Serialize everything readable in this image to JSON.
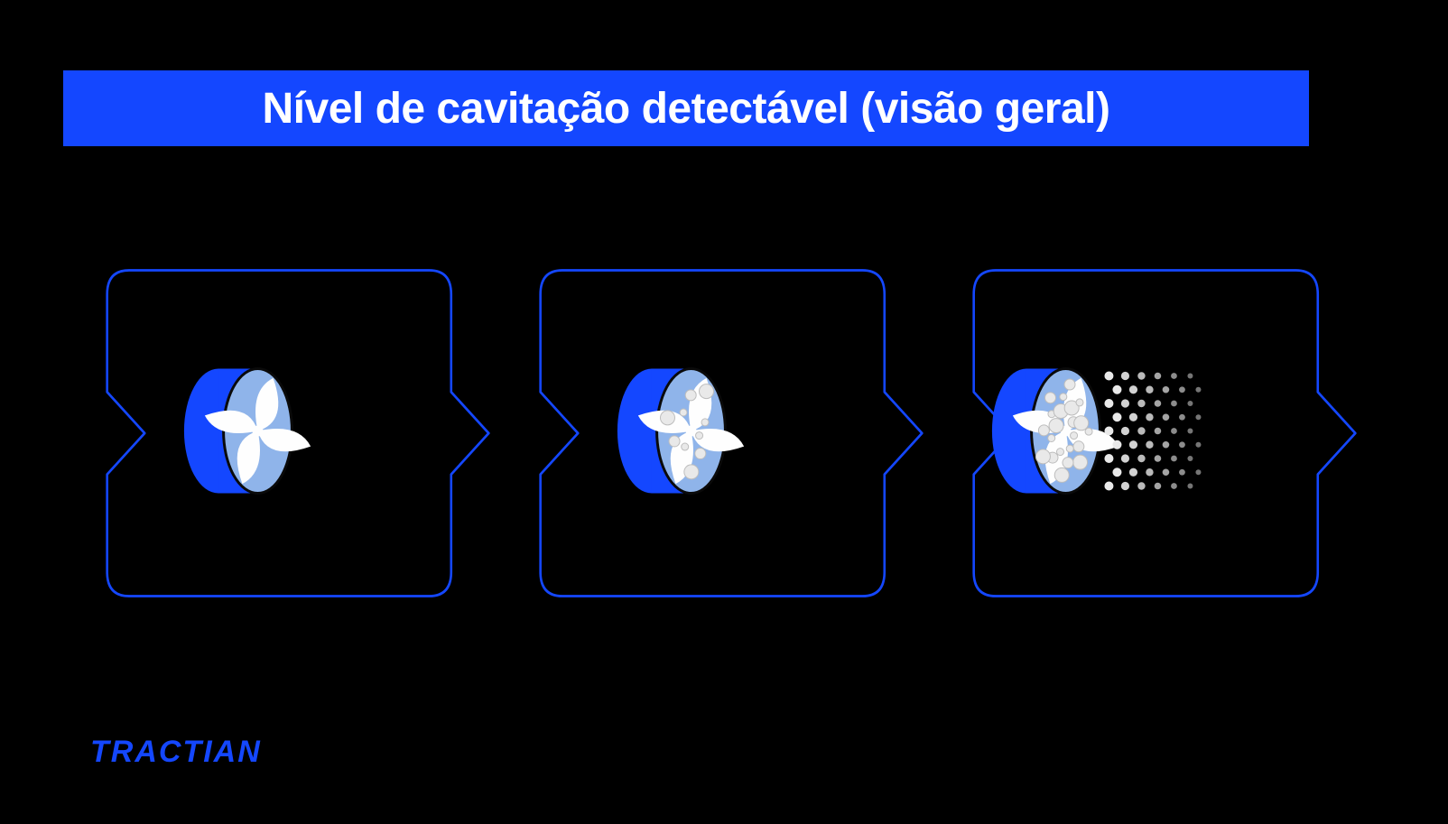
{
  "title": {
    "text": "Nível de cavitação detectável (visão geral)",
    "bg_color": "#1447ff",
    "text_color": "#ffffff",
    "fontsize": 48,
    "font_weight": 800
  },
  "layout": {
    "background_color": "#000000",
    "card_border_color": "#1447ff",
    "card_border_width": 3,
    "card_corner_radius": 28,
    "card_notch_depth": 48
  },
  "impeller_style": {
    "hub_color": "#1447ff",
    "face_fill": "#8fb4ea",
    "face_stroke": "#0a0a0a",
    "blade_color": "#fefefe",
    "bubble_color": "#e9e9e9",
    "bubble_stroke": "#bdbdbd",
    "width": 170,
    "height": 150
  },
  "stages": [
    {
      "id": "none",
      "bubbles_on_face": 0,
      "spray": false
    },
    {
      "id": "moderate",
      "bubbles_on_face": 10,
      "spray": false
    },
    {
      "id": "severe",
      "bubbles_on_face": 22,
      "spray": true,
      "spray_cols": 6,
      "spray_rows": 9
    }
  ],
  "logo": {
    "text": "TRACTIAN",
    "color": "#1447ff",
    "fontsize": 34
  }
}
